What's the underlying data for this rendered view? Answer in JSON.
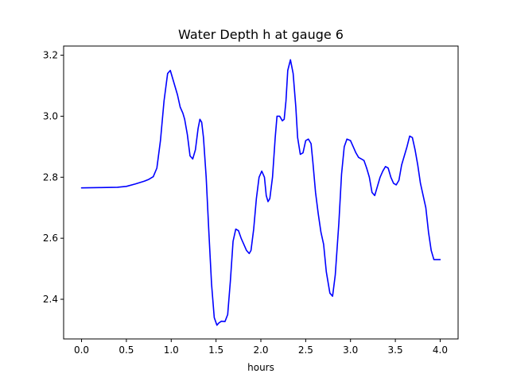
{
  "chart_data": {
    "type": "line",
    "title": "Water Depth h at gauge 6",
    "xlabel": "hours",
    "ylabel": "",
    "xlim": [
      -0.2,
      4.2
    ],
    "ylim": [
      2.27,
      3.23
    ],
    "xticks": [
      0.0,
      0.5,
      1.0,
      1.5,
      2.0,
      2.5,
      3.0,
      3.5,
      4.0
    ],
    "xtick_labels": [
      "0.0",
      "0.5",
      "1.0",
      "1.5",
      "2.0",
      "2.5",
      "3.0",
      "3.5",
      "4.0"
    ],
    "yticks": [
      2.4,
      2.6,
      2.8,
      3.0,
      3.2
    ],
    "ytick_labels": [
      "2.4",
      "2.6",
      "2.8",
      "3.0",
      "3.2"
    ],
    "grid": false,
    "series": [
      {
        "color": "#0000ff",
        "x": [
          0.0,
          0.2,
          0.4,
          0.5,
          0.6,
          0.7,
          0.75,
          0.8,
          0.84,
          0.88,
          0.92,
          0.96,
          0.99,
          1.03,
          1.07,
          1.1,
          1.13,
          1.15,
          1.18,
          1.21,
          1.24,
          1.27,
          1.3,
          1.32,
          1.34,
          1.36,
          1.39,
          1.42,
          1.45,
          1.48,
          1.51,
          1.53,
          1.56,
          1.6,
          1.63,
          1.66,
          1.69,
          1.72,
          1.75,
          1.78,
          1.81,
          1.84,
          1.87,
          1.89,
          1.92,
          1.95,
          1.98,
          2.01,
          2.04,
          2.06,
          2.08,
          2.1,
          2.13,
          2.16,
          2.18,
          2.21,
          2.24,
          2.26,
          2.28,
          2.3,
          2.33,
          2.36,
          2.39,
          2.41,
          2.44,
          2.47,
          2.5,
          2.53,
          2.56,
          2.58,
          2.61,
          2.64,
          2.67,
          2.7,
          2.73,
          2.77,
          2.8,
          2.83,
          2.87,
          2.9,
          2.93,
          2.96,
          3.0,
          3.03,
          3.06,
          3.09,
          3.12,
          3.15,
          3.18,
          3.21,
          3.24,
          3.27,
          3.3,
          3.33,
          3.36,
          3.39,
          3.42,
          3.45,
          3.48,
          3.51,
          3.54,
          3.57,
          3.6,
          3.63,
          3.66,
          3.69,
          3.72,
          3.75,
          3.78,
          3.81,
          3.84,
          3.87,
          3.9,
          3.93,
          3.96,
          4.0
        ],
        "y": [
          2.765,
          2.766,
          2.767,
          2.77,
          2.778,
          2.787,
          2.793,
          2.802,
          2.83,
          2.92,
          3.05,
          3.14,
          3.15,
          3.11,
          3.07,
          3.03,
          3.01,
          2.99,
          2.94,
          2.87,
          2.86,
          2.89,
          2.96,
          2.99,
          2.98,
          2.93,
          2.8,
          2.62,
          2.45,
          2.34,
          2.315,
          2.322,
          2.328,
          2.327,
          2.35,
          2.46,
          2.59,
          2.63,
          2.625,
          2.6,
          2.58,
          2.56,
          2.55,
          2.56,
          2.63,
          2.73,
          2.8,
          2.82,
          2.8,
          2.74,
          2.72,
          2.73,
          2.8,
          2.93,
          3.0,
          3.0,
          2.985,
          2.99,
          3.05,
          3.15,
          3.185,
          3.14,
          3.03,
          2.93,
          2.875,
          2.88,
          2.92,
          2.925,
          2.91,
          2.85,
          2.75,
          2.68,
          2.62,
          2.58,
          2.49,
          2.42,
          2.41,
          2.48,
          2.65,
          2.81,
          2.9,
          2.925,
          2.92,
          2.9,
          2.88,
          2.865,
          2.86,
          2.855,
          2.83,
          2.8,
          2.75,
          2.74,
          2.77,
          2.8,
          2.82,
          2.835,
          2.83,
          2.8,
          2.78,
          2.775,
          2.79,
          2.84,
          2.87,
          2.9,
          2.935,
          2.93,
          2.89,
          2.84,
          2.78,
          2.74,
          2.7,
          2.62,
          2.56,
          2.53,
          2.53,
          2.53
        ]
      }
    ]
  }
}
